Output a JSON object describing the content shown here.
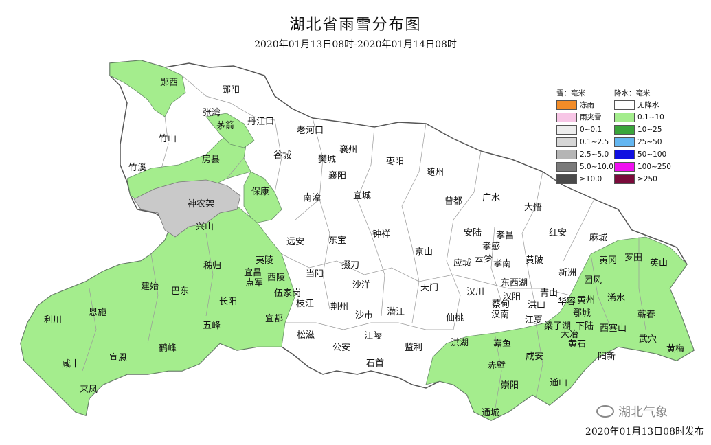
{
  "title": "湖北省雨雪分布图",
  "subtitle": "2020年01月13日08时-2020年01月14日08时",
  "footer": "2020年01月13日08时发布",
  "watermark": "湖北气象",
  "legend": {
    "snow_header": "雪：毫米",
    "rain_header": "降水：毫米",
    "snow_items": [
      {
        "label": "冻雨",
        "color": "#f28c28"
      },
      {
        "label": "雨夹雪",
        "color": "#f7c6e6"
      },
      {
        "label": "0~0.1",
        "color": "#ededed"
      },
      {
        "label": "0.1~2.5",
        "color": "#d6d6d6"
      },
      {
        "label": "2.5~5.0",
        "color": "#b5b5b5"
      },
      {
        "label": "5.0~10.0",
        "color": "#7a7a7a"
      },
      {
        "label": "≥10.0",
        "color": "#4a4a4a"
      }
    ],
    "rain_items": [
      {
        "label": "无降水",
        "color": "#ffffff"
      },
      {
        "label": "0.1~10",
        "color": "#a4ed8d"
      },
      {
        "label": "10~25",
        "color": "#3aa53a"
      },
      {
        "label": "25~50",
        "color": "#63b6f0"
      },
      {
        "label": "50~100",
        "color": "#1010e0"
      },
      {
        "label": "100~250",
        "color": "#f010f0"
      },
      {
        "label": "≥250",
        "color": "#7a0a3a"
      }
    ]
  },
  "colors": {
    "rain_light": "#a4ed8d",
    "snow_light": "#c9c9c9",
    "no_precip": "#ffffff",
    "border": "#555555"
  },
  "cities": [
    "郧西",
    "郧阳",
    "张湾",
    "茅箭",
    "丹江口",
    "竹山",
    "房县",
    "竹溪",
    "老河口",
    "谷城",
    "襄州",
    "樊城",
    "襄阳",
    "枣阳",
    "随州",
    "神农架",
    "保康",
    "南漳",
    "宜城",
    "曾都",
    "广水",
    "大悟",
    "兴山",
    "远安",
    "东宝",
    "钟祥",
    "安陆",
    "孝昌",
    "红安",
    "麻城",
    "孝感",
    "云梦",
    "孝南",
    "黄陂",
    "新洲",
    "黄冈",
    "罗田",
    "英山",
    "秭归",
    "宜昌",
    "夷陵",
    "当阳",
    "掇刀",
    "京山",
    "应城",
    "团风",
    "浠水",
    "建始",
    "巴东",
    "点军",
    "西陵",
    "伍家岗",
    "沙洋",
    "天门",
    "汉川",
    "东西湖",
    "汉阳",
    "青山",
    "蔡甸",
    "华容",
    "黄州",
    "蕲春",
    "利川",
    "恩施",
    "长阳",
    "枝江",
    "荆州",
    "沙市",
    "潜江",
    "仙桃",
    "汉南",
    "洪山",
    "江夏",
    "梁子湖",
    "鄂城",
    "大冶",
    "下陆",
    "西塞山",
    "武穴",
    "黄梅",
    "五峰",
    "宜都",
    "松滋",
    "公安",
    "江陵",
    "监利",
    "洪湖",
    "嘉鱼",
    "黄石",
    "阳新",
    "咸丰",
    "宣恩",
    "鹤峰",
    "石首",
    "赤壁",
    "咸安",
    "崇阳",
    "通山",
    "来凤",
    "通城"
  ]
}
